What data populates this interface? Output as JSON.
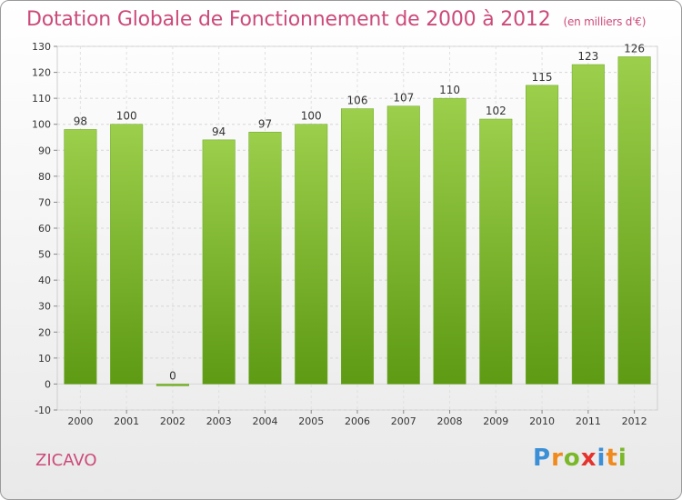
{
  "title": "Dotation Globale de Fonctionnement de 2000 à 2012",
  "unit": "(en milliers d'€)",
  "commune": "ZICAVO",
  "logo": {
    "letters": [
      "P",
      "r",
      "o",
      "x",
      "i",
      "t",
      "i"
    ],
    "colors": [
      "#3b8fd6",
      "#f08a1c",
      "#7ab828",
      "#e5322d",
      "#3b8fd6",
      "#f08a1c",
      "#7ab828"
    ]
  },
  "chart_data": {
    "type": "bar",
    "title": "Dotation Globale de Fonctionnement de 2000 à 2012",
    "categories": [
      "2000",
      "2001",
      "2002",
      "2003",
      "2004",
      "2005",
      "2006",
      "2007",
      "2008",
      "2009",
      "2010",
      "2011",
      "2012"
    ],
    "values": [
      98,
      100,
      0,
      94,
      97,
      100,
      106,
      107,
      110,
      102,
      115,
      123,
      126
    ],
    "ylim": [
      -10,
      130
    ],
    "yticks": [
      -10,
      0,
      10,
      20,
      30,
      40,
      50,
      60,
      70,
      80,
      90,
      100,
      110,
      120,
      130
    ],
    "grid": true,
    "bar_color": "#8cc43e"
  }
}
